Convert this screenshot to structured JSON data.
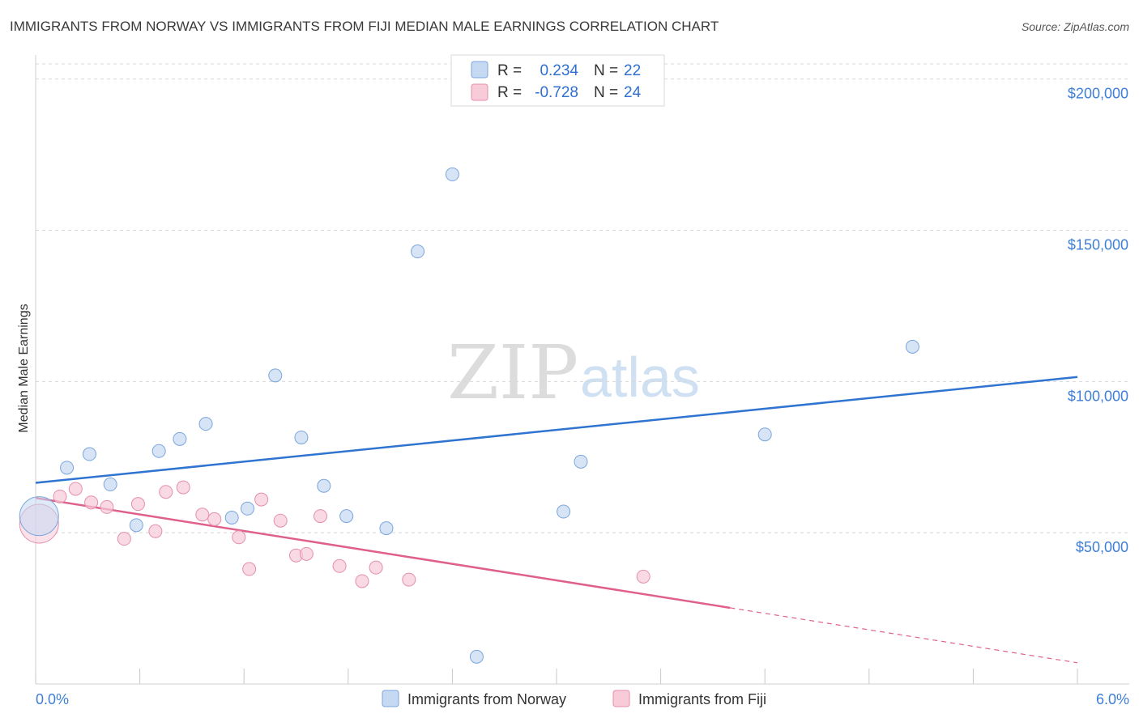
{
  "title": "IMMIGRANTS FROM NORWAY VS IMMIGRANTS FROM FIJI MEDIAN MALE EARNINGS CORRELATION CHART",
  "source": "Source: ZipAtlas.com",
  "watermark": {
    "zip": "ZIP",
    "atlas": "atlas"
  },
  "colors": {
    "norway_fill": "#c5d9f2",
    "norway_stroke": "#7aa6dc",
    "norway_line": "#2f74d0",
    "fiji_fill": "#f7cbd8",
    "fiji_stroke": "#e58fab",
    "fiji_line": "#e0608c",
    "tick_text": "#3f7fd6",
    "grid": "#d8d8d8"
  },
  "legend": {
    "rows": [
      {
        "r_label": "R =",
        "r_value": "0.234",
        "n_label": "N =",
        "n_value": "22"
      },
      {
        "r_label": "R =",
        "r_value": "-0.728",
        "n_label": "N =",
        "n_value": "24"
      }
    ]
  },
  "bottom_legend": {
    "items": [
      {
        "label": "Immigrants from Norway"
      },
      {
        "label": "Immigrants from Fiji"
      }
    ]
  },
  "chart_data": {
    "type": "scatter",
    "title": "IMMIGRANTS FROM NORWAY VS IMMIGRANTS FROM FIJI MEDIAN MALE EARNINGS CORRELATION CHART",
    "xlabel": "",
    "ylabel": "Median Male Earnings",
    "xlim": [
      0,
      6
    ],
    "ylim": [
      0,
      205000
    ],
    "x_tick_labels": [
      "0.0%",
      "6.0%"
    ],
    "y_ticks": [
      50000,
      100000,
      150000,
      200000
    ],
    "y_tick_labels": [
      "$50,000",
      "$100,000",
      "$150,000",
      "$200,000"
    ],
    "grid": true,
    "legend_position": "top-center",
    "series": [
      {
        "name": "Immigrants from Norway",
        "r": 0.234,
        "n": 22,
        "trend": {
          "x": [
            0,
            6
          ],
          "y": [
            66500,
            101500
          ],
          "dashed_from_x": null
        },
        "points": [
          {
            "x": 0.02,
            "y": 55500,
            "big": true
          },
          {
            "x": 0.18,
            "y": 71500
          },
          {
            "x": 0.31,
            "y": 76000
          },
          {
            "x": 0.43,
            "y": 66000
          },
          {
            "x": 0.58,
            "y": 52500
          },
          {
            "x": 0.71,
            "y": 77000
          },
          {
            "x": 0.83,
            "y": 81000
          },
          {
            "x": 0.98,
            "y": 86000
          },
          {
            "x": 1.13,
            "y": 55000
          },
          {
            "x": 1.22,
            "y": 58000
          },
          {
            "x": 1.38,
            "y": 102000
          },
          {
            "x": 1.53,
            "y": 81500
          },
          {
            "x": 1.66,
            "y": 65500
          },
          {
            "x": 1.79,
            "y": 55500
          },
          {
            "x": 2.02,
            "y": 51500
          },
          {
            "x": 2.2,
            "y": 143000
          },
          {
            "x": 2.4,
            "y": 168500
          },
          {
            "x": 2.54,
            "y": 9000
          },
          {
            "x": 3.04,
            "y": 57000
          },
          {
            "x": 3.14,
            "y": 73500
          },
          {
            "x": 4.2,
            "y": 82500
          },
          {
            "x": 5.05,
            "y": 111500
          }
        ]
      },
      {
        "name": "Immigrants from Fiji",
        "r": -0.728,
        "n": 24,
        "trend": {
          "x": [
            0,
            6
          ],
          "y": [
            61500,
            7000
          ],
          "dashed_from_x": 4.0
        },
        "points": [
          {
            "x": 0.02,
            "y": 53000,
            "big": true
          },
          {
            "x": 0.14,
            "y": 62000
          },
          {
            "x": 0.23,
            "y": 64500
          },
          {
            "x": 0.32,
            "y": 60000
          },
          {
            "x": 0.41,
            "y": 58500
          },
          {
            "x": 0.51,
            "y": 48000
          },
          {
            "x": 0.59,
            "y": 59500
          },
          {
            "x": 0.69,
            "y": 50500
          },
          {
            "x": 0.75,
            "y": 63500
          },
          {
            "x": 0.85,
            "y": 65000
          },
          {
            "x": 0.96,
            "y": 56000
          },
          {
            "x": 1.03,
            "y": 54500
          },
          {
            "x": 1.17,
            "y": 48500
          },
          {
            "x": 1.23,
            "y": 38000
          },
          {
            "x": 1.3,
            "y": 61000
          },
          {
            "x": 1.41,
            "y": 54000
          },
          {
            "x": 1.5,
            "y": 42500
          },
          {
            "x": 1.56,
            "y": 43000
          },
          {
            "x": 1.64,
            "y": 55500
          },
          {
            "x": 1.75,
            "y": 39000
          },
          {
            "x": 1.88,
            "y": 34000
          },
          {
            "x": 1.96,
            "y": 38500
          },
          {
            "x": 2.15,
            "y": 34500
          },
          {
            "x": 3.5,
            "y": 35500
          }
        ]
      }
    ]
  }
}
